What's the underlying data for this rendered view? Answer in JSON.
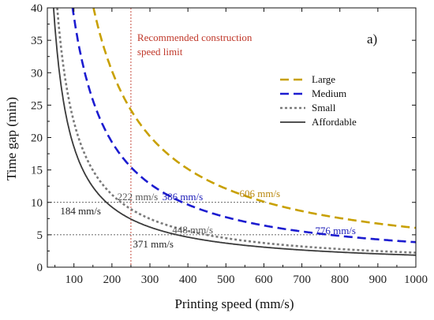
{
  "chart_data": {
    "type": "line",
    "panel_label": "a)",
    "xlabel": "Printing speed (mm/s)",
    "ylabel": "Time gap (min)",
    "xlim": [
      30,
      1000
    ],
    "ylim": [
      0,
      40
    ],
    "xticks": [
      100,
      200,
      300,
      400,
      500,
      600,
      700,
      800,
      900,
      1000
    ],
    "yticks": [
      0,
      5,
      10,
      15,
      20,
      25,
      30,
      35,
      40
    ],
    "grid": false,
    "legend_position": "upper-right",
    "series": [
      {
        "name": "Large",
        "color": "#c8a000",
        "dash": "11,6",
        "width": 2.6,
        "k": 6060,
        "x_start": 151,
        "x": [
          151,
          200,
          250,
          300,
          400,
          500,
          606,
          700,
          800,
          900,
          1000
        ]
      },
      {
        "name": "Medium",
        "color": "#1c1cd0",
        "dash": "11,6",
        "width": 2.6,
        "k": 3860,
        "x_start": 96,
        "x": [
          96,
          150,
          200,
          250,
          300,
          386,
          500,
          600,
          700,
          776,
          900,
          1000
        ]
      },
      {
        "name": "Small",
        "color": "#7a7a7a",
        "dash": "3,3",
        "width": 2.6,
        "k": 2240,
        "x_start": 56,
        "x": [
          56,
          100,
          150,
          222,
          300,
          448,
          600,
          800,
          1000
        ]
      },
      {
        "name": "Affordable",
        "color": "#3a3a3a",
        "dash": "",
        "width": 1.8,
        "k": 1855,
        "x_start": 46,
        "x": [
          46,
          100,
          184,
          250,
          371,
          500,
          700,
          1000
        ]
      }
    ],
    "vline": {
      "x": 250,
      "color": "#c0392b",
      "label_line1": "Recommended construction",
      "label_line2": "speed limit"
    },
    "hlines": [
      {
        "y": 10,
        "x_end": 606
      },
      {
        "y": 5,
        "x_end": 776
      }
    ],
    "annotations": [
      {
        "text": "606 mm/s",
        "color": "#b8860b",
        "x": 606,
        "y": 10
      },
      {
        "text": "386 mm/s",
        "color": "#1c1cb8",
        "x": 386,
        "y": 10
      },
      {
        "text": "222 mm/s",
        "color": "#555555",
        "x": 222,
        "y": 10
      },
      {
        "text": "184 mm/s",
        "color": "#222222",
        "x": 184,
        "y": 10
      },
      {
        "text": "776 mm/s",
        "color": "#1c1cb8",
        "x": 776,
        "y": 5
      },
      {
        "text": "448 mm/s",
        "color": "#555555",
        "x": 448,
        "y": 5
      },
      {
        "text": "371 mm/s",
        "color": "#222222",
        "x": 371,
        "y": 5
      }
    ]
  }
}
